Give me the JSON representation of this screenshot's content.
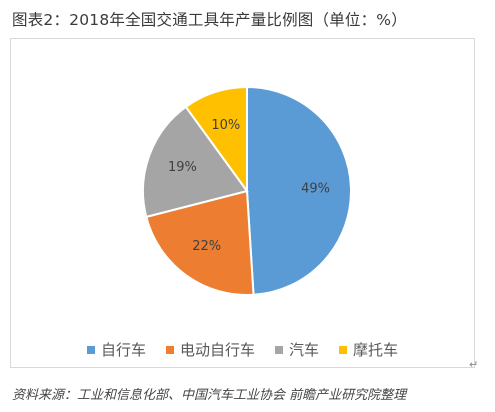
{
  "title": "图表2：2018年全国交通工具年产量比例图（单位：%）",
  "source": "资料来源：工业和信息化部、中国汽车工业协会 前瞻产业研究院整理",
  "return_mark": "↵",
  "chart_data": {
    "type": "pie",
    "title": "图表2：2018年全国交通工具年产量比例图（单位：%）",
    "categories": [
      "自行车",
      "电动自行车",
      "汽车",
      "摩托车"
    ],
    "values": [
      49,
      22,
      19,
      10
    ],
    "labels": [
      "49%",
      "22%",
      "19%",
      "10%"
    ],
    "colors": [
      "#5B9BD5",
      "#ED7D31",
      "#A5A5A5",
      "#FFC000"
    ],
    "start_angle": "12 o'clock, clockwise",
    "legend": "bottom"
  }
}
